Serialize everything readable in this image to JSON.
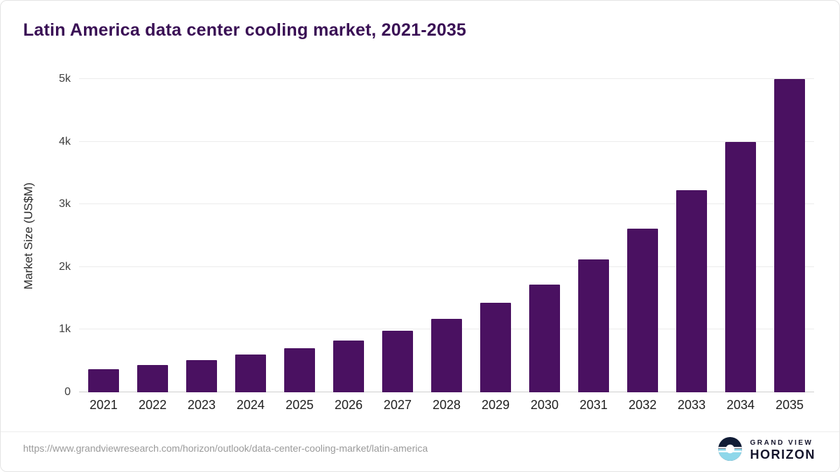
{
  "title": "Latin America data center cooling market, 2021-2035",
  "chart_data": {
    "type": "bar",
    "title": "Latin America data center cooling market, 2021-2035",
    "categories": [
      "2021",
      "2022",
      "2023",
      "2024",
      "2025",
      "2026",
      "2027",
      "2028",
      "2029",
      "2030",
      "2031",
      "2032",
      "2033",
      "2034",
      "2035"
    ],
    "values": [
      370,
      440,
      510,
      600,
      700,
      830,
      980,
      1170,
      1430,
      1720,
      2120,
      2610,
      3230,
      4000,
      5000
    ],
    "xlabel": "",
    "ylabel": "Market Size (US$M)",
    "ylim": [
      0,
      5000
    ],
    "yticks": [
      {
        "value": 0,
        "label": "0"
      },
      {
        "value": 1000,
        "label": "1k"
      },
      {
        "value": 2000,
        "label": "2k"
      },
      {
        "value": 3000,
        "label": "3k"
      },
      {
        "value": 4000,
        "label": "4k"
      },
      {
        "value": 5000,
        "label": "5k"
      }
    ],
    "grid": true,
    "legend": "none",
    "bar_color": "#4a1161",
    "title_color": "#3a1055"
  },
  "footer": {
    "source_url": "https://www.grandviewresearch.com/horizon/outlook/data-center-cooling-market/latin-america",
    "logo": {
      "line1": "GRAND VIEW",
      "line2": "HORIZON"
    }
  }
}
